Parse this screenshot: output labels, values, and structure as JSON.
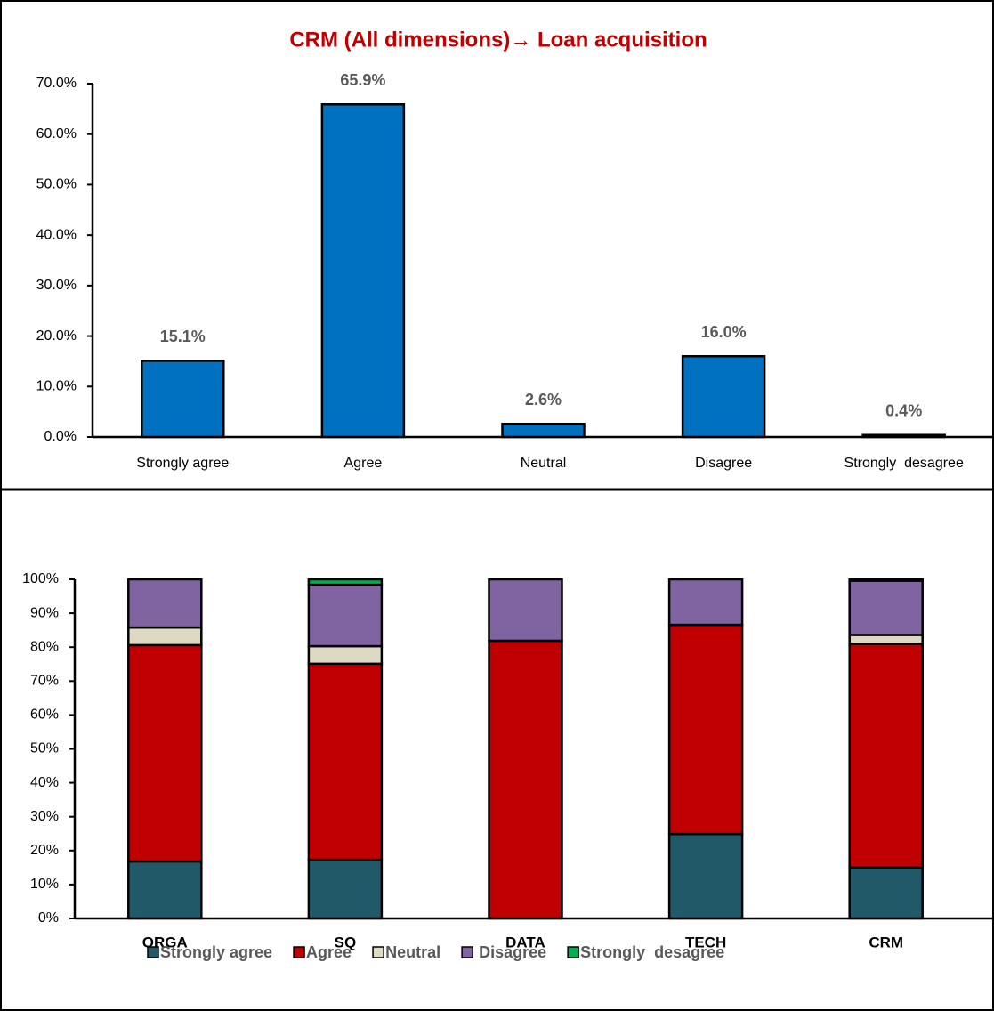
{
  "chart_data": [
    {
      "type": "bar",
      "title": "CRM (All dimensions)→ Loan acquisition",
      "categories": [
        "Strongly agree",
        "Agree",
        "Neutral",
        "Disagree",
        "Strongly  desagree"
      ],
      "values": [
        15.1,
        65.9,
        2.6,
        16.0,
        0.4
      ],
      "value_labels": [
        "15.1%",
        "65.9%",
        "2.6%",
        "16.0%",
        "0.4%"
      ],
      "color": "#0070c0",
      "ylim": [
        0,
        70
      ],
      "yticks": [
        {
          "value": 0,
          "label": "0.0%"
        },
        {
          "value": 10,
          "label": "10.0%"
        },
        {
          "value": 20,
          "label": "20.0%"
        },
        {
          "value": 30,
          "label": "30.0%"
        },
        {
          "value": 40,
          "label": "40.0%"
        },
        {
          "value": 50,
          "label": "50.0%"
        },
        {
          "value": 60,
          "label": "60.0%"
        },
        {
          "value": 70,
          "label": "70.0%"
        }
      ]
    },
    {
      "type": "stacked_bar",
      "categories": [
        "ORGA",
        "SQ",
        "DATA",
        "TECH",
        "CRM"
      ],
      "series": [
        {
          "name": "Strongly agree",
          "color": "#215968",
          "values": [
            16.8,
            17.3,
            0,
            24.9,
            15.1
          ]
        },
        {
          "name": "Agree",
          "color": "#c00000",
          "values": [
            63.8,
            57.8,
            81.9,
            61.7,
            65.9
          ]
        },
        {
          "name": "Neutral",
          "color": "#ddd9c3",
          "values": [
            5.2,
            5.2,
            0,
            0,
            2.6
          ]
        },
        {
          "name": " Disagree",
          "color": "#8064a2",
          "values": [
            14.2,
            18.1,
            18.1,
            13.4,
            16.0
          ]
        },
        {
          "name": "Strongly  desagree",
          "color": "#00b050",
          "values": [
            0,
            1.6,
            0,
            0,
            0.4
          ]
        }
      ],
      "ylim": [
        0,
        100
      ],
      "yticks": [
        {
          "value": 0,
          "label": "0%"
        },
        {
          "value": 10,
          "label": "10%"
        },
        {
          "value": 20,
          "label": "20%"
        },
        {
          "value": 30,
          "label": "30%"
        },
        {
          "value": 40,
          "label": "40%"
        },
        {
          "value": 50,
          "label": "50%"
        },
        {
          "value": 60,
          "label": "60%"
        },
        {
          "value": 70,
          "label": "70%"
        },
        {
          "value": 80,
          "label": "80%"
        },
        {
          "value": 90,
          "label": "90%"
        },
        {
          "value": 100,
          "label": "100%"
        }
      ],
      "legend": "bottom"
    }
  ]
}
